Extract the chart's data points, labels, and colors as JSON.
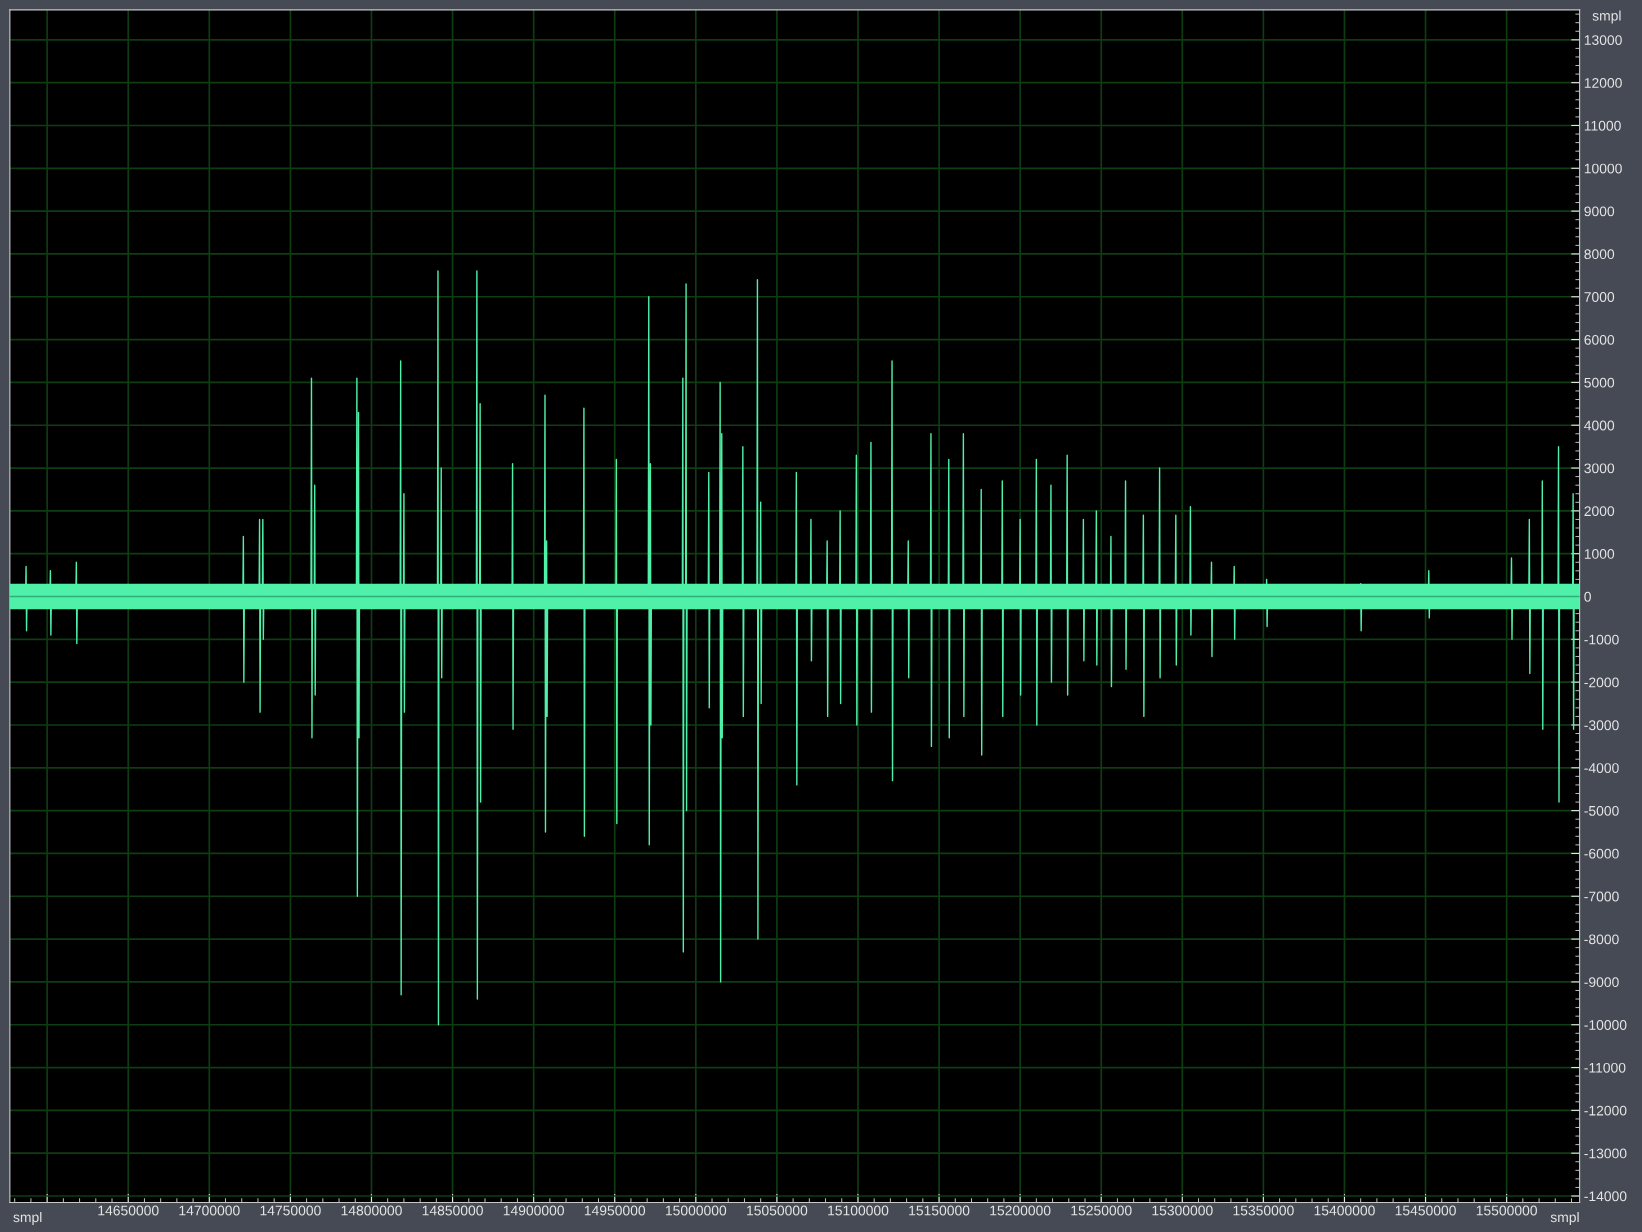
{
  "chart_data": {
    "type": "line",
    "xlabel": "smpl",
    "ylabel": "smpl",
    "annotations": [
      "smpl"
    ],
    "xlim": [
      14577000,
      15545000
    ],
    "ylim": [
      -14150,
      13700
    ],
    "xticks": [
      {
        "value": 14600000,
        "label": null
      },
      14650000,
      14700000,
      14750000,
      14800000,
      14850000,
      14900000,
      14950000,
      15000000,
      15050000,
      15100000,
      15150000,
      15200000,
      15250000,
      15300000,
      15350000,
      15400000,
      15450000,
      15500000
    ],
    "yticks": [
      13000,
      12000,
      11000,
      10000,
      9000,
      8000,
      7000,
      6000,
      5000,
      4000,
      3000,
      2000,
      1000,
      0,
      -1000,
      -2000,
      -3000,
      -4000,
      -5000,
      -6000,
      -7000,
      -8000,
      -9000,
      -10000,
      -11000,
      -12000,
      -13000,
      -14000
    ],
    "grid": true,
    "legend": false,
    "marker": "none",
    "line_style": "solid",
    "bands": [
      {
        "axis": "y",
        "from": -300,
        "to": 300,
        "color": "#4ff0a8"
      }
    ],
    "ref_lines": [
      {
        "axis": "y",
        "value": 0,
        "color": "#2fae7c"
      }
    ],
    "series": [
      {
        "color": "#4ff0a8",
        "x": [
          14586700,
          14587000,
          14587300,
          14587600,
          14601700,
          14602000,
          14602300,
          14602600,
          14617700,
          14618000,
          14618300,
          14618600,
          14720700,
          14721000,
          14721300,
          14721600,
          14730700,
          14731000,
          14731300,
          14731600,
          14732700,
          14733000,
          14733300,
          14733600,
          14762700,
          14763000,
          14763300,
          14763600,
          14764700,
          14765000,
          14765300,
          14765600,
          14790700,
          14791000,
          14791300,
          14791600,
          14791700,
          14792000,
          14792300,
          14792600,
          14817700,
          14818000,
          14818300,
          14818600,
          14819700,
          14820000,
          14820300,
          14820600,
          14840700,
          14841000,
          14841300,
          14841600,
          14842700,
          14843000,
          14843300,
          14843600,
          14864700,
          14865000,
          14865300,
          14865600,
          14866700,
          14867000,
          14867300,
          14867600,
          14886700,
          14887000,
          14887300,
          14887600,
          14906700,
          14907000,
          14907300,
          14907600,
          14907700,
          14908000,
          14908300,
          14908600,
          14930700,
          14931000,
          14931300,
          14931600,
          14950700,
          14951000,
          14951300,
          14951600,
          14970700,
          14971000,
          14971300,
          14971600,
          14971700,
          14972000,
          14972300,
          14972600,
          14991700,
          14992000,
          14992300,
          14992600,
          14993700,
          14994000,
          14994300,
          14994600,
          15007700,
          15008000,
          15008300,
          15008600,
          15014700,
          15015000,
          15015300,
          15015600,
          15015700,
          15016000,
          15016300,
          15016600,
          15028700,
          15029000,
          15029300,
          15029600,
          15037700,
          15038000,
          15038300,
          15038600,
          15039700,
          15040000,
          15040300,
          15040600,
          15061700,
          15062000,
          15062300,
          15062600,
          15070700,
          15071000,
          15071300,
          15071600,
          15080700,
          15081000,
          15081300,
          15081600,
          15088700,
          15089000,
          15089300,
          15089600,
          15098700,
          15099000,
          15099300,
          15099600,
          15107700,
          15108000,
          15108300,
          15108600,
          15120700,
          15121000,
          15121300,
          15121600,
          15130700,
          15131000,
          15131300,
          15131600,
          15144700,
          15145000,
          15145300,
          15145600,
          15155700,
          15156000,
          15156300,
          15156600,
          15164700,
          15165000,
          15165300,
          15165600,
          15175700,
          15176000,
          15176300,
          15176600,
          15188700,
          15189000,
          15189300,
          15189600,
          15199700,
          15200000,
          15200300,
          15200600,
          15209700,
          15210000,
          15210300,
          15210600,
          15218700,
          15219000,
          15219300,
          15219600,
          15228700,
          15229000,
          15229300,
          15229600,
          15238700,
          15239000,
          15239300,
          15239600,
          15246700,
          15247000,
          15247300,
          15247600,
          15255700,
          15256000,
          15256300,
          15256600,
          15264700,
          15265000,
          15265300,
          15265600,
          15275700,
          15276000,
          15276300,
          15276600,
          15285700,
          15286000,
          15286300,
          15286600,
          15295700,
          15296000,
          15296300,
          15296600,
          15304700,
          15305000,
          15305300,
          15305600,
          15317700,
          15318000,
          15318300,
          15318600,
          15331700,
          15332000,
          15332300,
          15332600,
          15351700,
          15352000,
          15352300,
          15352600,
          15409700,
          15410000,
          15410300,
          15410600,
          15451700,
          15452000,
          15452300,
          15452600,
          15502700,
          15503000,
          15503300,
          15503600,
          15513700,
          15514000,
          15514300,
          15514600,
          15521700,
          15522000,
          15522300,
          15522600,
          15531700,
          15532000,
          15532300,
          15532600,
          15540700,
          15541000,
          15541300,
          15541600
        ],
        "values": [
          0,
          700,
          -800,
          0,
          0,
          600,
          -900,
          0,
          0,
          800,
          -1100,
          0,
          0,
          1400,
          -2000,
          0,
          0,
          1800,
          -2700,
          0,
          0,
          1800,
          -1000,
          0,
          0,
          5100,
          -3300,
          0,
          0,
          2600,
          -2300,
          0,
          0,
          5100,
          -7000,
          0,
          0,
          4300,
          -3300,
          0,
          0,
          5500,
          -9300,
          0,
          0,
          2400,
          -2700,
          0,
          0,
          7600,
          -10000,
          0,
          0,
          3000,
          -1900,
          0,
          0,
          7600,
          -9400,
          0,
          0,
          4500,
          -4800,
          0,
          0,
          3100,
          -3100,
          0,
          0,
          4700,
          -5500,
          0,
          0,
          1300,
          -2800,
          0,
          0,
          4400,
          -5600,
          0,
          0,
          3200,
          -5300,
          0,
          0,
          7000,
          -5800,
          0,
          0,
          3100,
          -3000,
          0,
          0,
          5100,
          -8300,
          0,
          0,
          7300,
          -5000,
          0,
          0,
          2900,
          -2600,
          0,
          0,
          5000,
          -9000,
          0,
          0,
          3800,
          -3300,
          0,
          0,
          3500,
          -2800,
          0,
          0,
          7400,
          -8000,
          0,
          0,
          2200,
          -2500,
          0,
          0,
          2900,
          -4400,
          0,
          0,
          1800,
          -1500,
          0,
          0,
          1300,
          -2800,
          0,
          0,
          2000,
          -2500,
          0,
          0,
          3300,
          -3000,
          0,
          0,
          3600,
          -2700,
          0,
          0,
          5500,
          -4300,
          0,
          0,
          1300,
          -1900,
          0,
          0,
          3800,
          -3500,
          0,
          0,
          3200,
          -3300,
          0,
          0,
          3800,
          -2800,
          0,
          0,
          2500,
          -3700,
          0,
          0,
          2700,
          -2800,
          0,
          0,
          1800,
          -2300,
          0,
          0,
          3200,
          -3000,
          0,
          0,
          2600,
          -2000,
          0,
          0,
          3300,
          -2300,
          0,
          0,
          1800,
          -1500,
          0,
          0,
          2000,
          -1600,
          0,
          0,
          1400,
          -2100,
          0,
          0,
          2700,
          -1700,
          0,
          0,
          1900,
          -2800,
          0,
          0,
          3000,
          -1900,
          0,
          0,
          1900,
          -1600,
          0,
          0,
          2100,
          -900,
          0,
          0,
          800,
          -1400,
          0,
          0,
          700,
          -1000,
          0,
          0,
          400,
          -700,
          0,
          0,
          300,
          -800,
          0,
          0,
          600,
          -500,
          0,
          0,
          900,
          -1000,
          0,
          0,
          1800,
          -1800,
          0,
          0,
          2700,
          -3100,
          0,
          0,
          3500,
          -4800,
          0,
          0,
          2400,
          -3100,
          0
        ]
      }
    ]
  }
}
